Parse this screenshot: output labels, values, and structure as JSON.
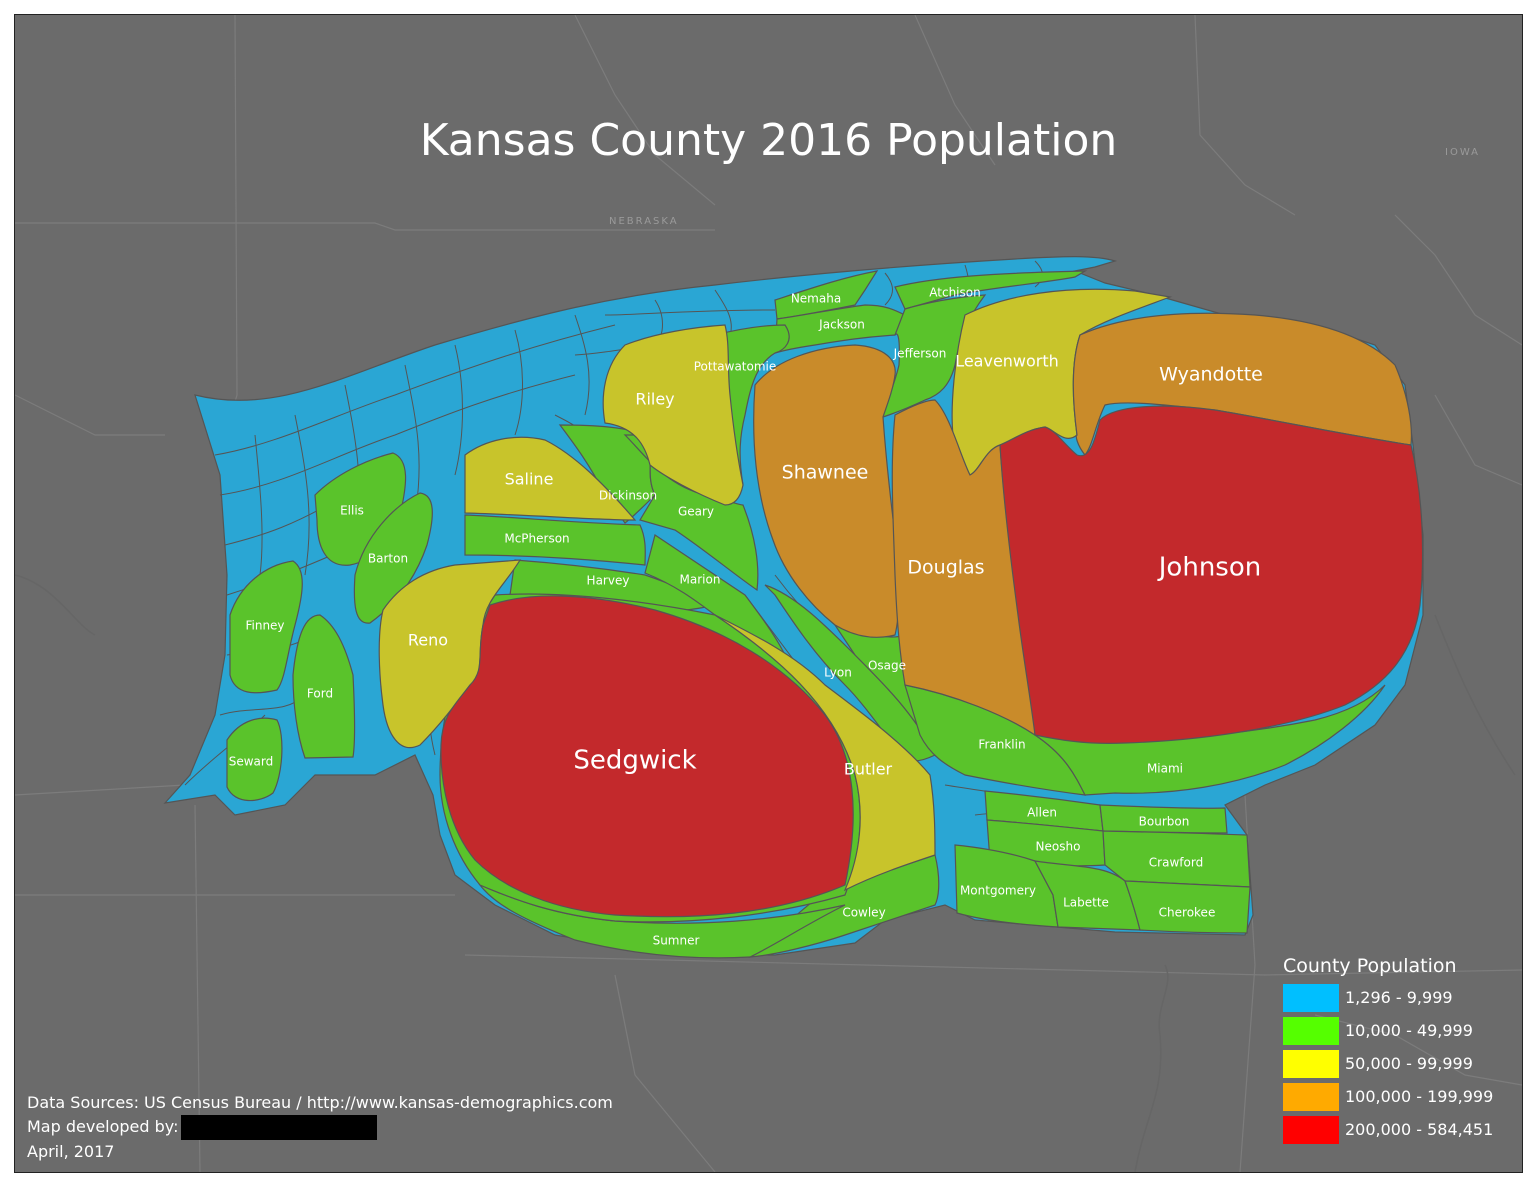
{
  "title": "Kansas County 2016 Population",
  "state_labels": {
    "nebraska": "NEBRASKA",
    "iowa": "IOWA"
  },
  "colors": {
    "background": "#6b6b6b",
    "tier1": "#2aa6d4",
    "tier2": "#5ac32b",
    "tier3": "#c8c42b",
    "tier4": "#c98b2a",
    "tier5": "#c3292c"
  },
  "legend": {
    "title": "County Population",
    "items": [
      {
        "label": "1,296 - 9,999",
        "color": "#00bfff"
      },
      {
        "label": "10,000 - 49,999",
        "color": "#55ff00"
      },
      {
        "label": "50,000 - 99,999",
        "color": "#ffff00"
      },
      {
        "label": "100,000 - 199,999",
        "color": "#ffaa00"
      },
      {
        "label": "200,000 - 584,451",
        "color": "#ff0000"
      }
    ]
  },
  "credits": {
    "sources": "Data Sources: US Census Bureau / http://www.kansas-demographics.com",
    "developer": "Map developed by:",
    "date": "April, 2017"
  },
  "counties": {
    "johnson": "Johnson",
    "sedgwick": "Sedgwick",
    "wyandotte": "Wyandotte",
    "shawnee": "Shawnee",
    "douglas": "Douglas",
    "leavenworth": "Leavenworth",
    "riley": "Riley",
    "saline": "Saline",
    "reno": "Reno",
    "butler": "Butler",
    "nemaha": "Nemaha",
    "atchison": "Atchison",
    "jackson": "Jackson",
    "jefferson": "Jefferson",
    "pottawatomie": "Pottawatomie",
    "dickinson": "Dickinson",
    "geary": "Geary",
    "mcpherson": "McPherson",
    "harvey": "Harvey",
    "marion": "Marion",
    "ellis": "Ellis",
    "barton": "Barton",
    "finney": "Finney",
    "ford": "Ford",
    "seward": "Seward",
    "lyon": "Lyon",
    "osage": "Osage",
    "franklin": "Franklin",
    "miami": "Miami",
    "allen": "Allen",
    "bourbon": "Bourbon",
    "neosho": "Neosho",
    "crawford": "Crawford",
    "montgomery": "Montgomery",
    "labette": "Labette",
    "cherokee": "Cherokee",
    "cowley": "Cowley",
    "sumner": "Sumner"
  }
}
